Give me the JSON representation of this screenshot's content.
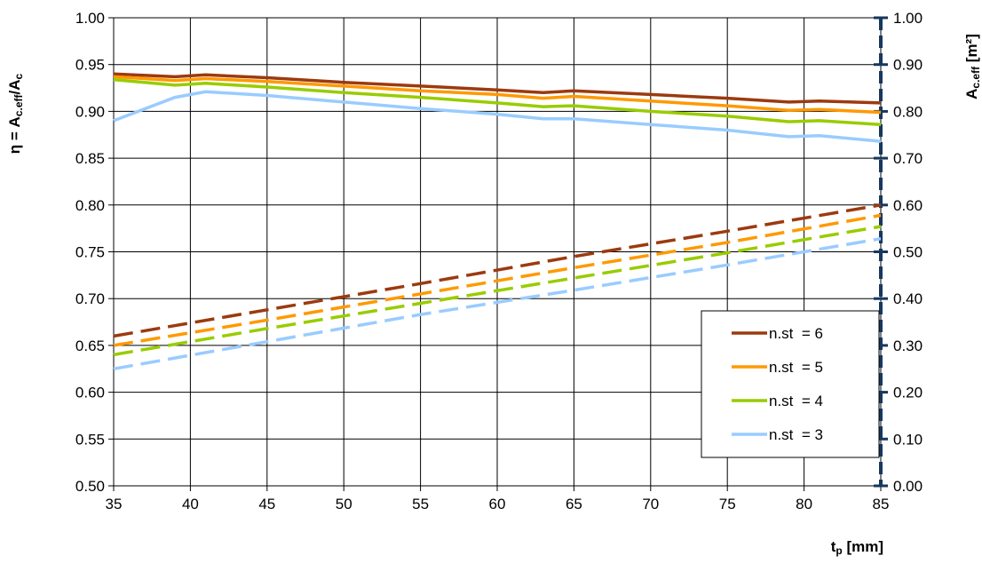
{
  "chart_data": {
    "type": "line",
    "xlabel": [
      "t",
      "p",
      " [mm]"
    ],
    "ylabel": [
      "η = A",
      "c.eff",
      "/A",
      "c"
    ],
    "y2label": [
      "A",
      "c.eff",
      " [m²]"
    ],
    "xlim": [
      35,
      85
    ],
    "xticks": [
      35,
      40,
      45,
      50,
      55,
      60,
      65,
      70,
      75,
      80,
      85
    ],
    "ylim": [
      0.5,
      1.0
    ],
    "yticks": [
      {
        "value": 0.5,
        "label": "0.50"
      },
      {
        "value": 0.55,
        "label": "0.55"
      },
      {
        "value": 0.6,
        "label": "0.60"
      },
      {
        "value": 0.65,
        "label": "0.65"
      },
      {
        "value": 0.7,
        "label": "0.70"
      },
      {
        "value": 0.75,
        "label": "0.75"
      },
      {
        "value": 0.8,
        "label": "0.80"
      },
      {
        "value": 0.85,
        "label": "0.85"
      },
      {
        "value": 0.9,
        "label": "0.90"
      },
      {
        "value": 0.95,
        "label": "0.95"
      },
      {
        "value": 1.0,
        "label": "1.00"
      }
    ],
    "y2lim": [
      0,
      1.0
    ],
    "y2ticks": [
      {
        "value": 0,
        "label": "0.00"
      },
      {
        "value": 0.1,
        "label": "0.10"
      },
      {
        "value": 0.2,
        "label": "0.20"
      },
      {
        "value": 0.3,
        "label": "0.30"
      },
      {
        "value": 0.4,
        "label": "0.40"
      },
      {
        "value": 0.5,
        "label": "0.50"
      },
      {
        "value": 0.6,
        "label": "0.60"
      },
      {
        "value": 0.7,
        "label": "0.70"
      },
      {
        "value": 0.8,
        "label": "0.80"
      },
      {
        "value": 0.9,
        "label": "0.90"
      },
      {
        "value": 1.0,
        "label": "1.00"
      }
    ],
    "grid": true,
    "legend": "lower right",
    "series": [
      {
        "name": "n.st  = 6",
        "color": "#9c3a0f",
        "x": [
          35,
          39,
          41,
          45,
          50,
          55,
          60,
          63,
          65,
          70,
          75,
          79,
          81,
          85
        ],
        "values": [
          0.94,
          0.937,
          0.939,
          0.936,
          0.931,
          0.927,
          0.923,
          0.92,
          0.922,
          0.918,
          0.914,
          0.91,
          0.911,
          0.909
        ]
      },
      {
        "name": "n.st  = 5",
        "color": "#ff9900",
        "x": [
          35,
          39,
          41,
          45,
          50,
          55,
          60,
          63,
          65,
          70,
          75,
          79,
          81,
          85
        ],
        "values": [
          0.937,
          0.933,
          0.935,
          0.932,
          0.927,
          0.922,
          0.918,
          0.914,
          0.916,
          0.911,
          0.906,
          0.901,
          0.902,
          0.899
        ]
      },
      {
        "name": "n.st  = 4",
        "color": "#99cc00",
        "x": [
          35,
          39,
          41,
          45,
          50,
          55,
          60,
          63,
          65,
          70,
          75,
          79,
          81,
          85
        ],
        "values": [
          0.934,
          0.928,
          0.93,
          0.926,
          0.92,
          0.915,
          0.909,
          0.905,
          0.906,
          0.9,
          0.895,
          0.889,
          0.89,
          0.886
        ]
      },
      {
        "name": "n.st  = 3",
        "color": "#99ccff",
        "x": [
          35,
          39,
          41,
          45,
          50,
          55,
          60,
          63,
          65,
          70,
          75,
          79,
          81,
          85
        ],
        "values": [
          0.89,
          0.915,
          0.921,
          0.917,
          0.91,
          0.903,
          0.897,
          0.892,
          0.892,
          0.886,
          0.88,
          0.873,
          0.874,
          0.868
        ]
      },
      {
        "axis": "y2",
        "dash": true,
        "color": "#9c3a0f",
        "x": [
          35,
          45,
          55,
          65,
          75,
          85
        ],
        "values": [
          0.32,
          0.376,
          0.432,
          0.49,
          0.544,
          0.6
        ]
      },
      {
        "axis": "y2",
        "dash": true,
        "color": "#ff9900",
        "x": [
          35,
          45,
          55,
          65,
          75,
          85
        ],
        "values": [
          0.3,
          0.354,
          0.41,
          0.466,
          0.52,
          0.578
        ]
      },
      {
        "axis": "y2",
        "dash": true,
        "color": "#99cc00",
        "x": [
          35,
          45,
          55,
          65,
          75,
          85
        ],
        "values": [
          0.28,
          0.336,
          0.39,
          0.444,
          0.498,
          0.554
        ]
      },
      {
        "axis": "y2",
        "dash": true,
        "color": "#99ccff",
        "x": [
          35,
          45,
          55,
          65,
          75,
          85
        ],
        "values": [
          0.25,
          0.308,
          0.366,
          0.418,
          0.472,
          0.528
        ]
      }
    ]
  }
}
